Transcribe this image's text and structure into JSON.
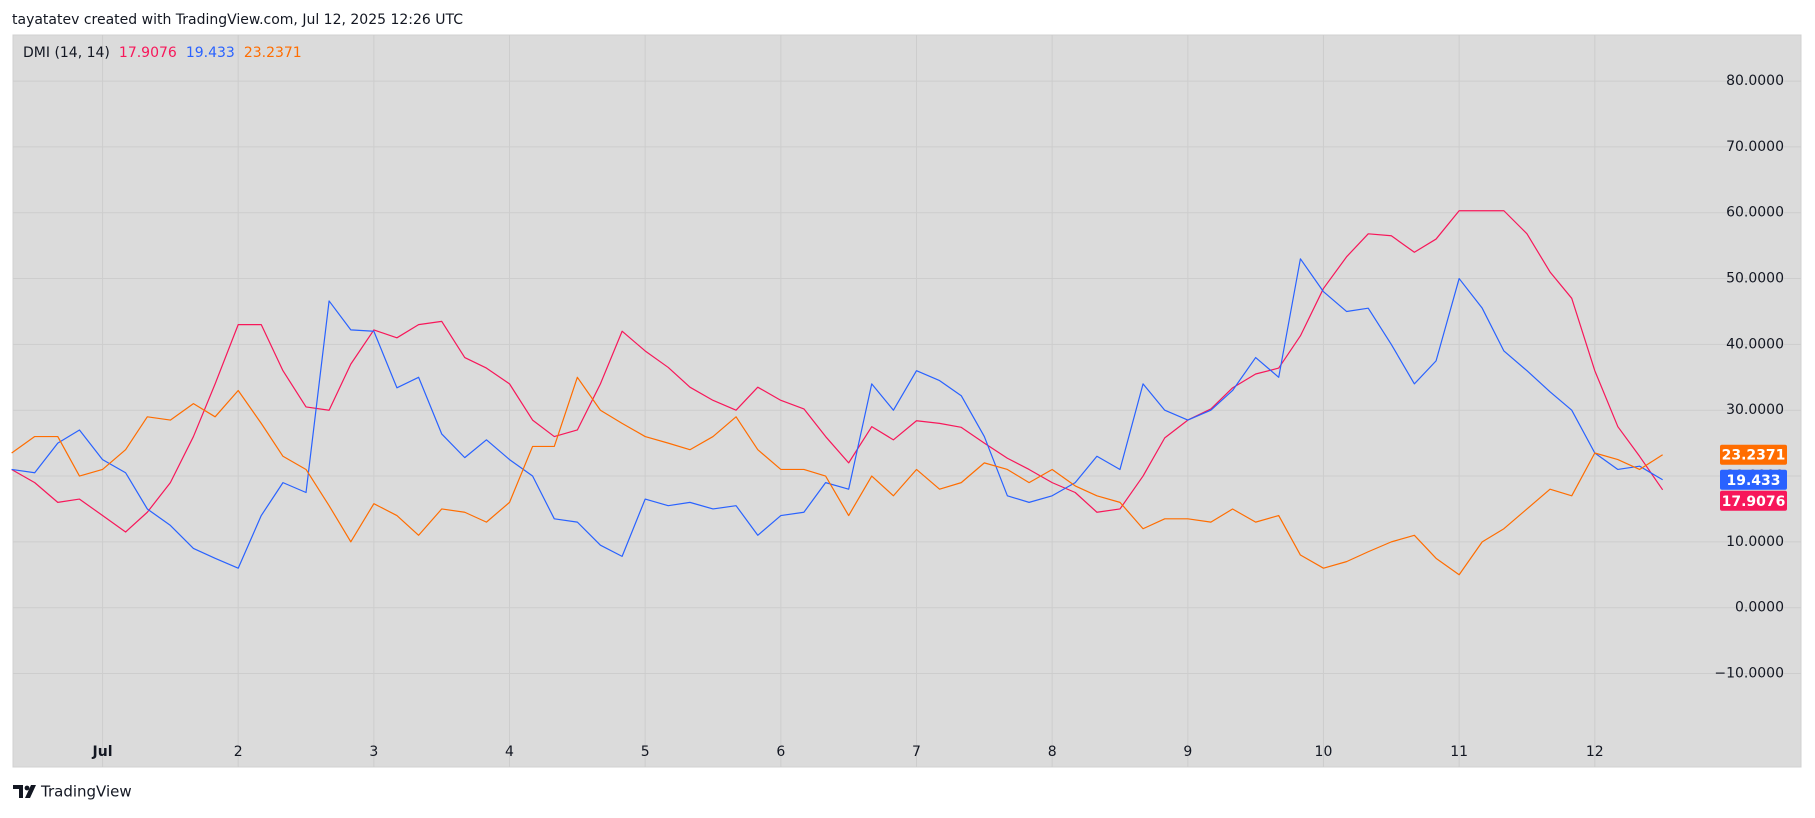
{
  "header": "tayatatev created with TradingView.com, Jul 12, 2025 12:26 UTC",
  "footer": {
    "brand": "TradingView"
  },
  "chart_data": {
    "type": "line",
    "indicator": "DMI (14, 14)",
    "x": [
      0.33,
      0.5,
      0.67,
      0.83,
      1,
      1.17,
      1.33,
      1.5,
      1.67,
      1.83,
      2,
      2.17,
      2.33,
      2.5,
      2.67,
      2.83,
      3,
      3.17,
      3.33,
      3.5,
      3.67,
      3.83,
      4,
      4.17,
      4.33,
      4.5,
      4.67,
      4.83,
      5,
      5.17,
      5.33,
      5.5,
      5.67,
      5.83,
      6,
      6.17,
      6.33,
      6.5,
      6.67,
      6.83,
      7,
      7.17,
      7.33,
      7.5,
      7.67,
      7.83,
      8,
      8.17,
      8.33,
      8.5,
      8.67,
      8.83,
      9,
      9.17,
      9.33,
      9.5,
      9.67,
      9.83,
      10,
      10.17,
      10.33,
      10.5,
      10.67,
      10.83,
      11,
      11.17,
      11.33,
      11.5,
      11.67,
      11.83,
      12,
      12.17,
      12.33,
      12.5
    ],
    "series": [
      {
        "color": "#f7175a",
        "values": [
          21,
          19,
          16,
          16.5,
          14,
          11.5,
          14.5,
          19,
          26,
          34,
          43,
          43,
          36,
          30.5,
          30,
          37,
          42.2,
          41,
          43,
          43.5,
          38,
          36.4,
          34,
          28.5,
          26,
          27,
          34,
          42,
          39,
          36.5,
          33.5,
          31.5,
          30,
          33.5,
          31.5,
          30.2,
          26,
          22,
          27.5,
          25.5,
          28.4,
          28,
          27.4,
          25,
          22.7,
          21,
          19,
          17.5,
          14.5,
          15,
          20,
          25.8,
          28.5,
          30.2,
          33.4,
          35.5,
          36.4,
          41.3,
          48.5,
          53.3,
          56.8,
          56.5,
          54,
          56,
          60.3,
          60.3,
          60.3,
          56.8,
          51,
          47,
          36,
          27.5,
          23,
          17.9076
        ]
      },
      {
        "color": "#2962ff",
        "values": [
          21,
          20.5,
          25,
          27,
          22.5,
          20.5,
          15,
          12.5,
          9,
          7.5,
          6,
          14,
          19,
          17.5,
          46.6,
          42.2,
          42,
          33.4,
          35,
          26.4,
          22.8,
          25.5,
          22.5,
          20,
          13.5,
          13,
          9.5,
          7.8,
          16.5,
          15.5,
          16,
          15,
          15.5,
          11,
          14,
          14.5,
          19,
          18,
          34,
          30,
          36,
          34.5,
          32.2,
          26,
          17,
          16,
          17,
          19,
          23,
          21,
          34,
          30,
          28.5,
          30,
          33,
          38,
          35,
          53,
          48,
          45,
          45.5,
          40,
          34,
          37.5,
          50,
          45.5,
          39,
          36,
          32.8,
          30,
          23.5,
          21,
          21.5,
          19.433
        ]
      },
      {
        "color": "#ff6d00",
        "values": [
          23.5,
          26,
          26,
          20,
          21,
          24,
          29,
          28.5,
          31,
          29,
          33,
          28,
          23,
          21,
          15.5,
          10,
          15.8,
          14,
          11,
          15,
          14.5,
          13,
          16,
          24.5,
          24.5,
          35,
          30,
          28,
          26,
          25,
          24,
          26,
          29,
          24,
          21,
          21,
          20,
          14,
          20,
          17,
          21,
          18,
          19,
          22,
          21,
          19,
          21,
          18.5,
          17,
          16,
          12,
          13.5,
          13.5,
          13,
          15,
          13,
          14,
          8,
          6,
          7,
          8.5,
          10,
          11,
          7.5,
          5,
          10,
          12,
          15,
          18,
          17,
          23.5,
          22.5,
          21,
          23.2371
        ]
      }
    ],
    "xlim": [
      0.34,
      13.52
    ],
    "xticks": [
      {
        "value": 1,
        "label": "Jul"
      },
      2,
      3,
      4,
      5,
      6,
      7,
      8,
      9,
      10,
      11,
      12
    ],
    "ylim": [
      -24.2,
      87
    ],
    "yticks": [
      {
        "value": -10,
        "label": "−10.0000"
      },
      {
        "value": 0,
        "label": "0.0000"
      },
      {
        "value": 10,
        "label": "10.0000"
      },
      {
        "value": 20,
        "label": "20.0000"
      },
      {
        "value": 30,
        "label": "30.0000"
      },
      {
        "value": 40,
        "label": "40.0000"
      },
      {
        "value": 50,
        "label": "50.0000"
      },
      {
        "value": 60,
        "label": "60.0000"
      },
      {
        "value": 70,
        "label": "70.0000"
      },
      {
        "value": 80,
        "label": "80.0000"
      }
    ],
    "grid": true
  }
}
